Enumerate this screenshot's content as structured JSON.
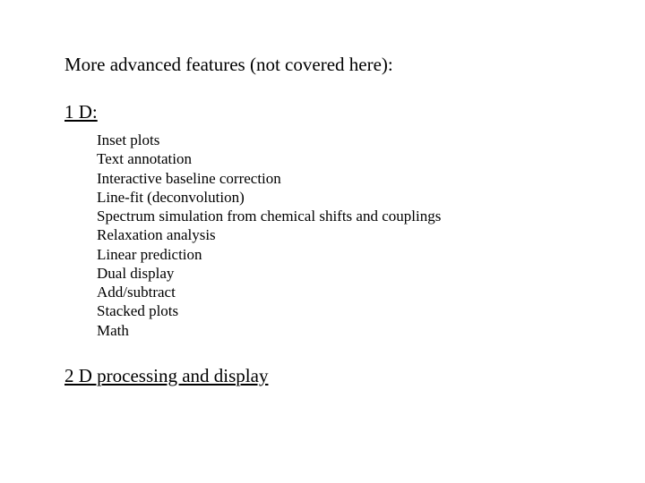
{
  "heading": "More advanced features (not covered here):",
  "section1": {
    "title": "1 D:",
    "items": [
      "Inset plots",
      "Text annotation",
      "Interactive baseline correction",
      "Line-fit (deconvolution)",
      "Spectrum simulation from chemical shifts and couplings",
      "Relaxation analysis",
      "Linear prediction",
      "Dual display",
      "Add/subtract",
      "Stacked plots",
      "Math"
    ]
  },
  "section2": {
    "title": "2 D processing and display"
  },
  "style": {
    "background_color": "#ffffff",
    "text_color": "#000000",
    "heading_fontsize": 21,
    "item_fontsize": 17,
    "font_family": "Times New Roman"
  }
}
